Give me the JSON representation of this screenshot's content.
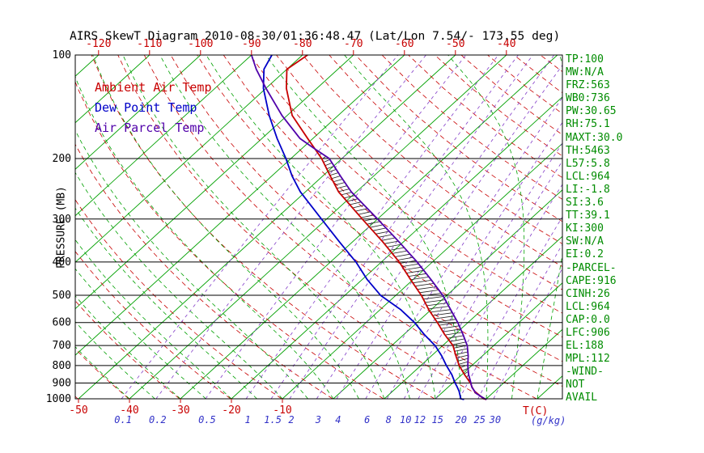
{
  "title": "AIRS SkewT Diagram 2010-08-30/01:36:48.47 (Lat/Lon 7.54/- 173.55 deg)",
  "legend": [
    {
      "label": "Ambient Air Temp",
      "color": "#c80000"
    },
    {
      "label": "Dew Point Temp",
      "color": "#0000c8"
    },
    {
      "label": "Air Parcel Temp",
      "color": "#5000aa"
    }
  ],
  "axes": {
    "y_label": "PRESSURE (MB)",
    "pressure_ticks": [
      100,
      200,
      300,
      400,
      500,
      600,
      700,
      800,
      900,
      1000
    ],
    "top_temp_ticks": [
      -120,
      -110,
      -100,
      -90,
      -80,
      -70,
      -60,
      -50,
      -40
    ],
    "bottom_temp_ticks": [
      -50,
      -40,
      -30,
      -20,
      -10
    ],
    "bottom_temp_unit": "T(C)",
    "mixing_ratio_unit": "(g/kg)"
  },
  "stats_panel": [
    "TP:100",
    "MW:N/A",
    "FRZ:563",
    "WB0:736",
    "PW:30.65",
    "RH:75.1",
    "MAXT:30.0",
    "TH:5463",
    "L57:5.8",
    "LCL:964",
    "LI:-1.8",
    "SI:3.6",
    "TT:39.1",
    "KI:300",
    "SW:N/A",
    "EI:0.2",
    "-PARCEL-",
    "CAPE:916",
    "CINH:26",
    "LCL:964",
    "CAP:0.0",
    "LFC:906",
    "EL:188",
    "MPL:112",
    "-WIND-",
    "NOT",
    "AVAIL"
  ],
  "colors": {
    "isotherm": "#00a000",
    "dry_adiabat": "#c80000",
    "moist_adiabat": "#00a000",
    "mixing_ratio_line": "#823cc8",
    "mixing_ratio_label": "#3232c8",
    "temp_axis_label": "#c80000",
    "isobar": "#000000",
    "stats_text": "#008c00",
    "hatch": "#1e1e1e"
  },
  "chart_data": {
    "type": "line",
    "title": "AIRS SkewT Diagram 2010-08-30/01:36:48.47 (Lat/Lon 7.54/- 173.55 deg)",
    "x_axis": {
      "label": "T(C)",
      "surface_tick_range": [
        -50,
        -10
      ],
      "top_labels_at_100mb": [
        -120,
        -110,
        -100,
        -90,
        -80,
        -70,
        -60,
        -50,
        -40
      ]
    },
    "y_axis": {
      "label": "PRESSURE (MB)",
      "scale": "log",
      "range": [
        100,
        1000
      ],
      "ticks": [
        100,
        200,
        300,
        400,
        500,
        600,
        700,
        800,
        900,
        1000
      ]
    },
    "isolines": {
      "isotherms_c": {
        "from": -130,
        "to": 40,
        "step": 10,
        "color": "#00a000",
        "style": "solid"
      },
      "dry_adiabats_k": {
        "from": 223,
        "to": 473,
        "step": 10,
        "color": "#c80000",
        "style": "dashed"
      },
      "moist_adiabats_c": {
        "from": -40,
        "to": 40,
        "step": 5,
        "color": "#00a000",
        "style": "dashed"
      },
      "mixing_ratio_gkg": {
        "values": [
          0.1,
          0.2,
          0.5,
          1,
          1.5,
          2,
          3,
          4,
          6,
          8,
          10,
          12,
          15,
          20,
          25,
          30
        ],
        "color": "#823cc8",
        "style": "dashed"
      }
    },
    "hatch_region": {
      "between": [
        "Ambient Air Temp",
        "Air Parcel Temp"
      ],
      "pressure_range": [
        905,
        188
      ]
    },
    "series": [
      {
        "name": "Ambient Air Temp",
        "color": "#c80000",
        "points": [
          [
            1005,
            30.2
          ],
          [
            1000,
            29.5
          ],
          [
            950,
            26
          ],
          [
            925,
            24.7
          ],
          [
            900,
            23.5
          ],
          [
            850,
            20.5
          ],
          [
            800,
            17.5
          ],
          [
            750,
            14.8
          ],
          [
            700,
            12
          ],
          [
            650,
            8
          ],
          [
            600,
            4
          ],
          [
            550,
            -0.5
          ],
          [
            500,
            -5
          ],
          [
            450,
            -10.5
          ],
          [
            400,
            -16.5
          ],
          [
            350,
            -24
          ],
          [
            300,
            -33
          ],
          [
            250,
            -43.5
          ],
          [
            225,
            -48.5
          ],
          [
            200,
            -54
          ],
          [
            175,
            -61
          ],
          [
            150,
            -69
          ],
          [
            125,
            -76
          ],
          [
            110,
            -80
          ],
          [
            100,
            -79
          ]
        ]
      },
      {
        "name": "Dew Point Temp",
        "color": "#0000c8",
        "points": [
          [
            1005,
            25.8
          ],
          [
            1000,
            25
          ],
          [
            950,
            23
          ],
          [
            925,
            21.8
          ],
          [
            900,
            20.5
          ],
          [
            850,
            18
          ],
          [
            800,
            15
          ],
          [
            750,
            12
          ],
          [
            700,
            8.5
          ],
          [
            650,
            4
          ],
          [
            600,
            -0.5
          ],
          [
            550,
            -6
          ],
          [
            500,
            -13
          ],
          [
            450,
            -19
          ],
          [
            400,
            -25
          ],
          [
            350,
            -32.5
          ],
          [
            300,
            -41
          ],
          [
            250,
            -51
          ],
          [
            225,
            -56
          ],
          [
            200,
            -61
          ],
          [
            175,
            -67
          ],
          [
            150,
            -73.5
          ],
          [
            125,
            -80.5
          ],
          [
            110,
            -84.5
          ],
          [
            100,
            -86
          ]
        ]
      },
      {
        "name": "Air Parcel Temp",
        "color": "#5000aa",
        "points": [
          [
            1005,
            30.2
          ],
          [
            1000,
            29.7
          ],
          [
            964,
            26.8
          ],
          [
            925,
            24.65
          ],
          [
            900,
            23.6
          ],
          [
            850,
            21.3
          ],
          [
            800,
            19.2
          ],
          [
            750,
            17.2
          ],
          [
            700,
            14.8
          ],
          [
            650,
            11.6
          ],
          [
            600,
            8
          ],
          [
            550,
            3.8
          ],
          [
            500,
            -0.8
          ],
          [
            450,
            -6.5
          ],
          [
            400,
            -13
          ],
          [
            350,
            -20.8
          ],
          [
            300,
            -30
          ],
          [
            250,
            -41
          ],
          [
            225,
            -46.5
          ],
          [
            200,
            -52.5
          ],
          [
            188,
            -57.2
          ],
          [
            175,
            -62.5
          ],
          [
            150,
            -71
          ],
          [
            125,
            -80
          ],
          [
            110,
            -86
          ],
          [
            100,
            -90
          ]
        ]
      }
    ]
  }
}
